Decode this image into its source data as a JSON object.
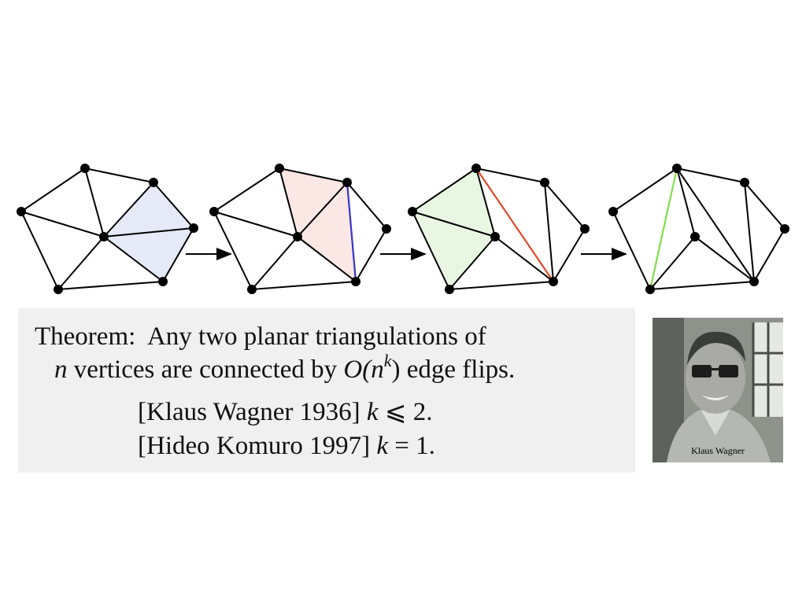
{
  "theorem": {
    "label": "Theorem:",
    "statement_start": "Any two planar triangulations of",
    "var_n": "n",
    "statement_mid": "vertices are connected by",
    "bigO_open": "O(",
    "bigO_n": "n",
    "bigO_exp": "k",
    "bigO_close": ")",
    "statement_end": "edge flips."
  },
  "citations": [
    {
      "ref": "[Klaus Wagner 1936]",
      "var": "k",
      "relation": "⩽ 2."
    },
    {
      "ref": "[Hideo Komuro 1997]",
      "var": "k",
      "relation": "= 1."
    }
  ],
  "photo": {
    "caption": "Klaus Wagner"
  },
  "colors": {
    "vertex": "#000000",
    "edge": "#000000",
    "blue_region": "#e5e9f8",
    "blue_edge": "#3434c8",
    "pink_region": "#fbe7e4",
    "red_edge": "#e0482a",
    "green_region": "#e8f7e2",
    "green_edge": "#80e04a",
    "box_bg": "#f0f0f0"
  }
}
